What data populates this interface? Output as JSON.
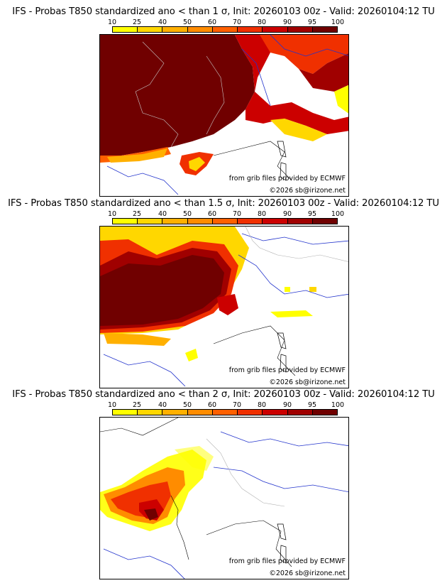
{
  "panels": [
    {
      "title": "IFS - Probas T850  standardized ano < than 1 σ, Init: 20260103 00z - Valid: 20260104:12 TU"
    },
    {
      "title": "IFS - Probas T850  standardized ano < than 1.5 σ, Init: 20260103 00z - Valid: 20260104:12 TU"
    },
    {
      "title": "IFS - Probas T850  standardized ano < than 2 σ, Init: 20260103 00z - Valid: 20260104:12 TU"
    }
  ],
  "colorbar": {
    "labels": [
      "10",
      "25",
      "40",
      "50",
      "60",
      "70",
      "80",
      "90",
      "95",
      "100"
    ],
    "colors": [
      "#ffff00",
      "#ffd700",
      "#ffb000",
      "#ff8c00",
      "#ff6000",
      "#f03000",
      "#cc0000",
      "#a00000",
      "#700000"
    ]
  },
  "credit_source": "from grib files provided by ECMWF",
  "credit_copyright": "©2026 sb@irizone.net"
}
